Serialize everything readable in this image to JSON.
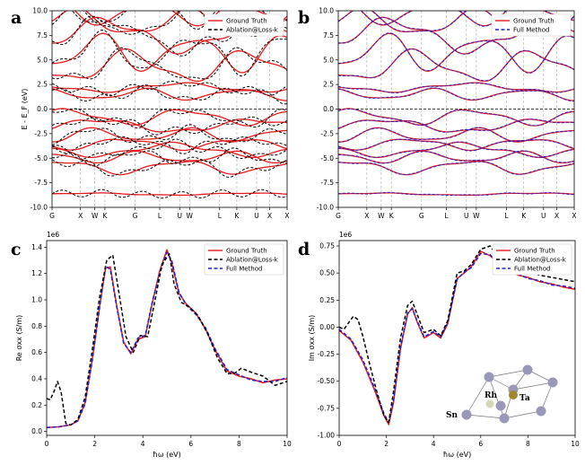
{
  "colors": {
    "ground_truth": "#e41a1c",
    "ablation": "#000000",
    "full": "#1f1fd6",
    "kline": "#aaaaaa",
    "atom_sn": "#9a98b8",
    "atom_ta": "#a0872e",
    "atom_rh": "#d6d6b8"
  },
  "chart_data": [
    {
      "panel": "a",
      "type": "line",
      "ylabel": "E - E_F (eV)",
      "ylim": [
        -10,
        10
      ],
      "yticks": [
        "-10.0",
        "-7.5",
        "-5.0",
        "-2.5",
        "0.0",
        "2.5",
        "5.0",
        "7.5",
        "10.0"
      ],
      "xticks": [
        "G",
        "X",
        "W",
        "K",
        "G",
        "L",
        "U",
        "W",
        "L",
        "K",
        "U",
        "X"
      ],
      "kpos": [
        0,
        0.121,
        0.182,
        0.225,
        0.353,
        0.458,
        0.543,
        0.585,
        0.713,
        0.786,
        0.87,
        0.926
      ],
      "legend": [
        "Ground Truth",
        "Ablation@Loss-k"
      ],
      "series": [
        {
          "name": "Ground Truth",
          "style": "solid"
        },
        {
          "name": "Ablation@Loss-k",
          "style": "dashed"
        }
      ]
    },
    {
      "panel": "b",
      "type": "line",
      "ylim": [
        -10,
        10
      ],
      "yticks": [
        "-10.0",
        "-7.5",
        "-5.0",
        "-2.5",
        "0.0",
        "2.5",
        "5.0",
        "7.5",
        "10.0"
      ],
      "xticks": [
        "G",
        "X",
        "W",
        "K",
        "G",
        "L",
        "U",
        "W",
        "L",
        "K",
        "U",
        "X"
      ],
      "kpos": [
        0,
        0.121,
        0.182,
        0.225,
        0.353,
        0.458,
        0.543,
        0.585,
        0.713,
        0.786,
        0.87,
        0.926
      ],
      "legend": [
        "Ground Truth",
        "Full Method"
      ],
      "series": [
        {
          "name": "Ground Truth",
          "style": "solid"
        },
        {
          "name": "Full Method",
          "style": "dashed"
        }
      ]
    },
    {
      "panel": "c",
      "type": "line",
      "title_offset": "1e6",
      "xlabel": "ħω (eV)",
      "ylabel": "Re σxx (S/m)",
      "xlim": [
        0,
        10
      ],
      "ylim": [
        -0.03,
        1.45
      ],
      "xticks": [
        0,
        2,
        4,
        6,
        8,
        10
      ],
      "yticks": [
        0.0,
        0.2,
        0.4,
        0.6,
        0.8,
        1.0,
        1.2,
        1.4
      ],
      "legend": [
        "Ground Truth",
        "Ablation@Loss-k",
        "Full Method"
      ],
      "series": [
        {
          "name": "Ground Truth",
          "x": [
            0,
            0.5,
            1,
            1.3,
            1.6,
            1.9,
            2.2,
            2.45,
            2.65,
            2.9,
            3.2,
            3.5,
            3.8,
            4.1,
            4.4,
            4.7,
            5.0,
            5.2,
            5.5,
            5.8,
            6.2,
            6.6,
            7.0,
            7.5,
            8.0,
            8.5,
            9.0,
            9.5,
            10
          ],
          "y": [
            0.03,
            0.035,
            0.05,
            0.08,
            0.22,
            0.55,
            0.95,
            1.24,
            1.25,
            0.97,
            0.68,
            0.59,
            0.7,
            0.72,
            0.98,
            1.22,
            1.38,
            1.28,
            1.05,
            0.97,
            0.9,
            0.78,
            0.62,
            0.46,
            0.42,
            0.4,
            0.37,
            0.39,
            0.4
          ]
        },
        {
          "name": "Ablation@Loss-k",
          "x": [
            0,
            0.15,
            0.3,
            0.45,
            0.6,
            0.8,
            1.0,
            1.3,
            1.6,
            1.9,
            2.2,
            2.5,
            2.75,
            3.0,
            3.3,
            3.6,
            3.9,
            4.2,
            4.5,
            4.8,
            5.1,
            5.3,
            5.6,
            5.9,
            6.3,
            6.7,
            7.1,
            7.5,
            7.8,
            8.1,
            8.5,
            9.0,
            9.5,
            10
          ],
          "y": [
            0.25,
            0.24,
            0.3,
            0.38,
            0.3,
            0.06,
            0.05,
            0.09,
            0.26,
            0.62,
            1.02,
            1.3,
            1.34,
            1.06,
            0.72,
            0.6,
            0.73,
            0.72,
            0.99,
            1.27,
            1.35,
            1.12,
            0.98,
            0.95,
            0.88,
            0.74,
            0.56,
            0.44,
            0.44,
            0.48,
            0.45,
            0.42,
            0.35,
            0.38
          ]
        },
        {
          "name": "Full Method",
          "x": [
            0,
            0.5,
            1,
            1.3,
            1.6,
            1.9,
            2.2,
            2.45,
            2.65,
            2.9,
            3.2,
            3.5,
            3.8,
            4.1,
            4.4,
            4.7,
            5.0,
            5.2,
            5.5,
            5.8,
            6.2,
            6.6,
            7.0,
            7.5,
            8.0,
            8.5,
            9.0,
            9.5,
            10
          ],
          "y": [
            0.03,
            0.035,
            0.05,
            0.08,
            0.21,
            0.54,
            0.94,
            1.26,
            1.23,
            0.96,
            0.67,
            0.6,
            0.71,
            0.73,
            0.99,
            1.2,
            1.36,
            1.3,
            1.06,
            0.96,
            0.89,
            0.79,
            0.63,
            0.47,
            0.43,
            0.39,
            0.38,
            0.38,
            0.41
          ]
        }
      ]
    },
    {
      "panel": "d",
      "type": "line",
      "title_offset": "1e6",
      "xlabel": "ħω (eV)",
      "ylabel": "Im σxx (S/m)",
      "xlim": [
        0,
        10
      ],
      "ylim": [
        -1.0,
        0.8
      ],
      "xticks": [
        0,
        2,
        4,
        6,
        8,
        10
      ],
      "yticks": [
        -1.0,
        -0.75,
        -0.5,
        -0.25,
        0.0,
        0.25,
        0.5,
        0.75
      ],
      "legend": [
        "Ground Truth",
        "Ablation@Loss-k",
        "Full Method"
      ],
      "series": [
        {
          "name": "Ground Truth",
          "x": [
            0,
            0.5,
            1,
            1.5,
            1.9,
            2.1,
            2.3,
            2.6,
            2.9,
            3.1,
            3.3,
            3.6,
            4.0,
            4.3,
            4.6,
            5.0,
            5.3,
            5.6,
            6.0,
            6.4,
            6.8,
            7.2,
            7.6,
            8.0,
            8.5,
            9.0,
            9.5,
            10
          ],
          "y": [
            -0.03,
            -0.12,
            -0.32,
            -0.58,
            -0.82,
            -0.9,
            -0.7,
            -0.2,
            0.12,
            0.18,
            0.05,
            -0.1,
            -0.05,
            -0.1,
            0.03,
            0.45,
            0.5,
            0.56,
            0.7,
            0.66,
            0.58,
            0.52,
            0.48,
            0.46,
            0.42,
            0.4,
            0.37,
            0.35
          ]
        },
        {
          "name": "Ablation@Loss-k",
          "x": [
            0,
            0.2,
            0.4,
            0.6,
            0.8,
            1.0,
            1.3,
            1.6,
            1.9,
            2.1,
            2.3,
            2.6,
            2.9,
            3.1,
            3.3,
            3.6,
            4.0,
            4.3,
            4.6,
            5.0,
            5.3,
            5.6,
            6.0,
            6.4,
            6.8,
            7.2,
            7.6,
            8.0,
            8.5,
            9.0,
            9.5,
            10
          ],
          "y": [
            0.0,
            -0.02,
            0.04,
            0.1,
            0.07,
            -0.08,
            -0.35,
            -0.6,
            -0.82,
            -0.88,
            -0.6,
            -0.1,
            0.2,
            0.24,
            0.12,
            -0.05,
            -0.02,
            -0.08,
            0.06,
            0.5,
            0.52,
            0.58,
            0.72,
            0.75,
            0.63,
            0.58,
            0.55,
            0.52,
            0.48,
            0.46,
            0.44,
            0.42
          ]
        },
        {
          "name": "Full Method",
          "x": [
            0,
            0.5,
            1,
            1.5,
            1.9,
            2.1,
            2.3,
            2.6,
            2.9,
            3.1,
            3.3,
            3.6,
            4.0,
            4.3,
            4.6,
            5.0,
            5.3,
            5.6,
            6.0,
            6.4,
            6.8,
            7.2,
            7.6,
            8.0,
            8.5,
            9.0,
            9.5,
            10
          ],
          "y": [
            -0.02,
            -0.11,
            -0.3,
            -0.56,
            -0.8,
            -0.88,
            -0.68,
            -0.18,
            0.13,
            0.17,
            0.06,
            -0.09,
            -0.04,
            -0.09,
            0.04,
            0.44,
            0.51,
            0.55,
            0.68,
            0.67,
            0.57,
            0.53,
            0.49,
            0.45,
            0.43,
            0.39,
            0.38,
            0.36
          ]
        }
      ]
    }
  ],
  "panels": {
    "a": "a",
    "b": "b",
    "c": "c",
    "d": "d"
  },
  "crystal": {
    "atoms": [
      "Rh",
      "Ta",
      "Sn"
    ]
  }
}
